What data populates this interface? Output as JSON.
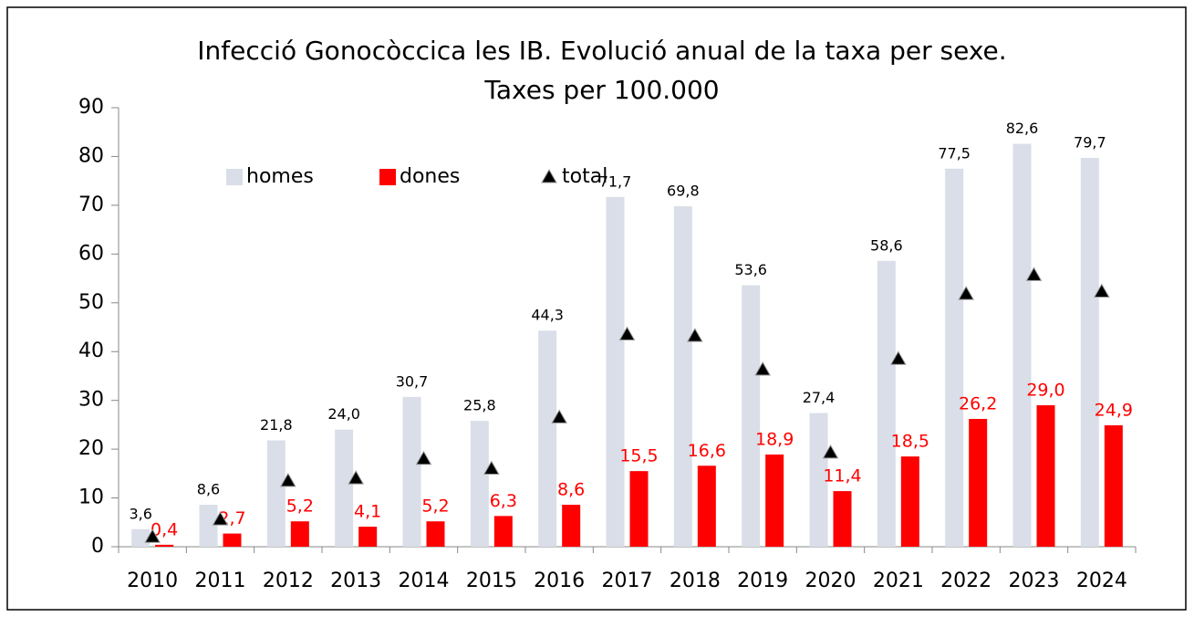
{
  "chart_data": {
    "type": "bar",
    "title": [
      "Infecció Gonocòccica les IB. Evolució anual de la taxa per sexe.",
      "Taxes per 100.000"
    ],
    "categories": [
      "2010",
      "2011",
      "2012",
      "2013",
      "2014",
      "2015",
      "2016",
      "2017",
      "2018",
      "2019",
      "2020",
      "2021",
      "2022",
      "2023",
      "2024"
    ],
    "series": [
      {
        "name": "homes",
        "color": "#d9dee8",
        "values": [
          3.6,
          8.6,
          21.8,
          24.0,
          30.7,
          25.8,
          44.3,
          71.7,
          69.8,
          53.6,
          27.4,
          58.6,
          77.5,
          82.6,
          79.7
        ],
        "value_labels": [
          "3,6",
          "8,6",
          "21,8",
          "24,0",
          "30,7",
          "25,8",
          "44,3",
          "71,7",
          "69,8",
          "53,6",
          "27,4",
          "58,6",
          "77,5",
          "82,6",
          "79,7"
        ]
      },
      {
        "name": "dones",
        "color": "#ff0000",
        "values": [
          0.4,
          2.7,
          5.2,
          4.1,
          5.2,
          6.3,
          8.6,
          15.5,
          16.6,
          18.9,
          11.4,
          18.5,
          26.2,
          29.0,
          24.9
        ],
        "value_labels": [
          "0,4",
          "2,7",
          "5,2",
          "4,1",
          "5,2",
          "6,3",
          "8,6",
          "15,5",
          "16,6",
          "18,9",
          "11,4",
          "18,5",
          "26,2",
          "29,0",
          "24,9"
        ]
      },
      {
        "name": "total",
        "color": "#000000",
        "marker": "triangle",
        "values": [
          2,
          5.6,
          13.5,
          14,
          18,
          16,
          26.5,
          43.5,
          43.2,
          36.3,
          19.3,
          38.5,
          51.8,
          55.7,
          52.3
        ]
      }
    ],
    "ylim": [
      0,
      90
    ],
    "yticks": [
      0,
      10,
      20,
      30,
      40,
      50,
      60,
      70,
      80,
      90
    ],
    "grid": false,
    "legend": "top-left"
  }
}
